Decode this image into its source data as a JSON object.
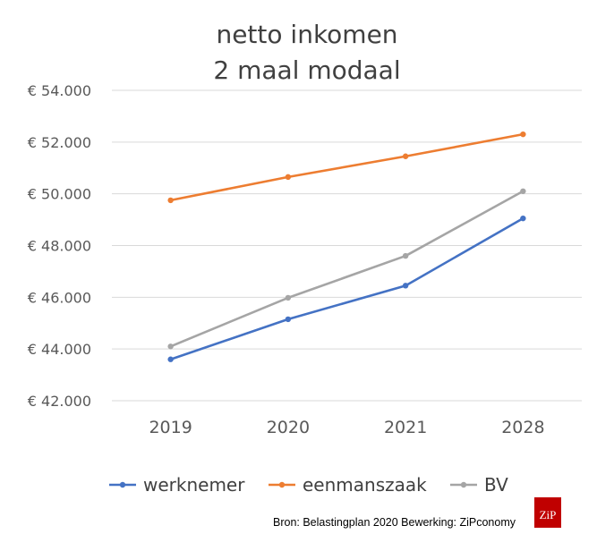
{
  "chart_data": {
    "type": "line",
    "title_lines": [
      "netto inkomen",
      "2 maal modaal"
    ],
    "categories": [
      "2019",
      "2020",
      "2021",
      "2028"
    ],
    "y_ticks": [
      "€ 42.000",
      "€ 44.000",
      "€ 46.000",
      "€ 48.000",
      "€ 50.000",
      "€ 52.000",
      "€ 54.000"
    ],
    "ylim": [
      42000,
      54000
    ],
    "grid": true,
    "legend_position": "bottom",
    "series": [
      {
        "name": "werknemer",
        "color": "#4472C4",
        "values": [
          43600,
          45150,
          46450,
          49050
        ]
      },
      {
        "name": "eenmanszaak",
        "color": "#ED7D31",
        "values": [
          49750,
          50650,
          51450,
          52300
        ]
      },
      {
        "name": "BV",
        "color": "#A5A5A5",
        "values": [
          44100,
          45980,
          47600,
          50100
        ]
      }
    ]
  },
  "footer": {
    "source": "Bron: Belastingplan 2020 Bewerking: ZiPconomy",
    "logo_text": "ZiP",
    "logo_color": "#C00000"
  }
}
